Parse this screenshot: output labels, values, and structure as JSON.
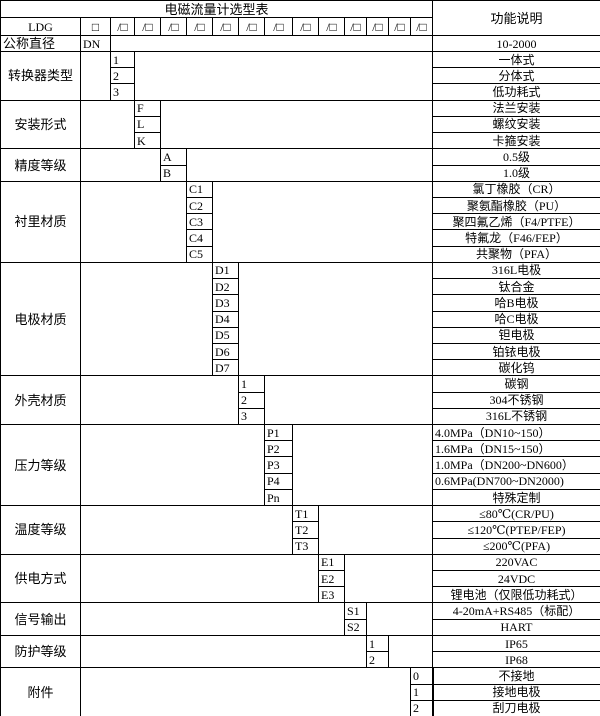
{
  "title": "电磁流量计选型表",
  "desc_header": "功能说明",
  "model_prefix": "LDG",
  "first_slot": "□",
  "slot": "/□",
  "slot_count": 13,
  "nominal": {
    "label": "公称直径",
    "code": "DN",
    "desc": "10-2000"
  },
  "groups": [
    {
      "label": "转换器类型",
      "items": [
        [
          "1",
          "一体式"
        ],
        [
          "2",
          "分体式"
        ],
        [
          "3",
          "低功耗式"
        ]
      ]
    },
    {
      "label": "安装形式",
      "items": [
        [
          "F",
          "法兰安装"
        ],
        [
          "L",
          "螺纹安装"
        ],
        [
          "K",
          "卡箍安装"
        ]
      ]
    },
    {
      "label": "精度等级",
      "items": [
        [
          "A",
          "0.5级"
        ],
        [
          "B",
          "1.0级"
        ]
      ]
    },
    {
      "label": "衬里材质",
      "items": [
        [
          "C1",
          "氯丁橡胶（CR）"
        ],
        [
          "C2",
          "聚氨酯橡胶（PU）"
        ],
        [
          "C3",
          "聚四氟乙烯（F4/PTFE）"
        ],
        [
          "C4",
          "特氟龙（F46/FEP）"
        ],
        [
          "C5",
          "共聚物（PFA）"
        ]
      ]
    },
    {
      "label": "电极材质",
      "items": [
        [
          "D1",
          "316L电极"
        ],
        [
          "D2",
          "钛合金"
        ],
        [
          "D3",
          "哈B电极"
        ],
        [
          "D4",
          "哈C电极"
        ],
        [
          "D5",
          "钽电极"
        ],
        [
          "D6",
          "铂铱电极"
        ],
        [
          "D7",
          "碳化钨"
        ]
      ]
    },
    {
      "label": "外壳材质",
      "items": [
        [
          "1",
          "碳钢"
        ],
        [
          "2",
          "304不锈钢"
        ],
        [
          "3",
          "316L不锈钢"
        ]
      ]
    },
    {
      "label": "压力等级",
      "items": [
        [
          "P1",
          "4.0MPa（DN10~150）"
        ],
        [
          "P2",
          "1.6MPa（DN15~150）"
        ],
        [
          "P3",
          "1.0MPa（DN200~DN600）"
        ],
        [
          "P4",
          "0.6MPa(DN700~DN2000)"
        ],
        [
          "Pn",
          "特殊定制"
        ]
      ]
    },
    {
      "label": "温度等级",
      "items": [
        [
          "T1",
          "≤80℃(CR/PU)"
        ],
        [
          "T2",
          "≤120℃(PTEP/FEP)"
        ],
        [
          "T3",
          "≤200℃(PFA)"
        ]
      ]
    },
    {
      "label": "供电方式",
      "items": [
        [
          "E1",
          "220VAC"
        ],
        [
          "E2",
          "24VDC"
        ],
        [
          "E3",
          "锂电池（仅限低功耗式）"
        ]
      ]
    },
    {
      "label": "信号输出",
      "items": [
        [
          "S1",
          "4-20mA+RS485（标配）"
        ],
        [
          "S2",
          "HART"
        ]
      ]
    },
    {
      "label": "防护等级",
      "items": [
        [
          "1",
          "IP65"
        ],
        [
          "2",
          "IP68"
        ]
      ]
    },
    {
      "label": "附件",
      "items": [
        [
          "0",
          "不接地"
        ],
        [
          "1",
          "接地电极"
        ],
        [
          "2",
          "刮刀电极"
        ]
      ]
    }
  ]
}
